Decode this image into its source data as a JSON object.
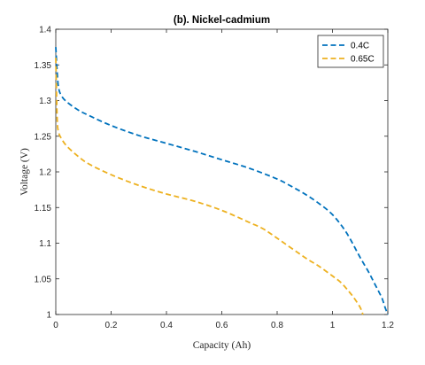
{
  "chart_data": {
    "type": "line",
    "title": "(b). Nickel-cadmium",
    "xlabel": "Capacity (Ah)",
    "ylabel": "Voltage (V)",
    "xlim": [
      0,
      1.2
    ],
    "ylim": [
      1,
      1.4
    ],
    "xticks": [
      "0",
      "0.2",
      "0.4",
      "0.6",
      "0.8",
      "1",
      "1.2"
    ],
    "yticks": [
      "1",
      "1.05",
      "1.1",
      "1.15",
      "1.2",
      "1.25",
      "1.3",
      "1.35",
      "1.4"
    ],
    "grid": false,
    "legend_position": "top-right",
    "series": [
      {
        "name": "0.4C",
        "color": "#0072BD",
        "line_style": "dashed",
        "x": [
          0,
          0.005,
          0.01,
          0.02,
          0.04,
          0.08,
          0.12,
          0.2,
          0.3,
          0.4,
          0.5,
          0.6,
          0.7,
          0.8,
          0.85,
          0.9,
          0.95,
          1.0,
          1.05,
          1.1,
          1.13,
          1.15,
          1.17,
          1.18,
          1.19,
          1.2
        ],
        "y": [
          1.375,
          1.34,
          1.318,
          1.307,
          1.298,
          1.287,
          1.279,
          1.265,
          1.251,
          1.24,
          1.229,
          1.217,
          1.205,
          1.19,
          1.18,
          1.169,
          1.156,
          1.14,
          1.115,
          1.08,
          1.06,
          1.045,
          1.03,
          1.022,
          1.01,
          1.0
        ]
      },
      {
        "name": "0.65C",
        "color": "#EDB120",
        "line_style": "dashed",
        "x": [
          0,
          0.005,
          0.01,
          0.02,
          0.04,
          0.08,
          0.12,
          0.2,
          0.3,
          0.4,
          0.5,
          0.6,
          0.7,
          0.75,
          0.8,
          0.9,
          0.95,
          1.0,
          1.03,
          1.06,
          1.08,
          1.1,
          1.11
        ],
        "y": [
          1.36,
          1.275,
          1.256,
          1.247,
          1.236,
          1.222,
          1.211,
          1.196,
          1.181,
          1.169,
          1.159,
          1.146,
          1.129,
          1.12,
          1.107,
          1.08,
          1.068,
          1.054,
          1.045,
          1.032,
          1.022,
          1.01,
          1.0
        ]
      }
    ]
  }
}
